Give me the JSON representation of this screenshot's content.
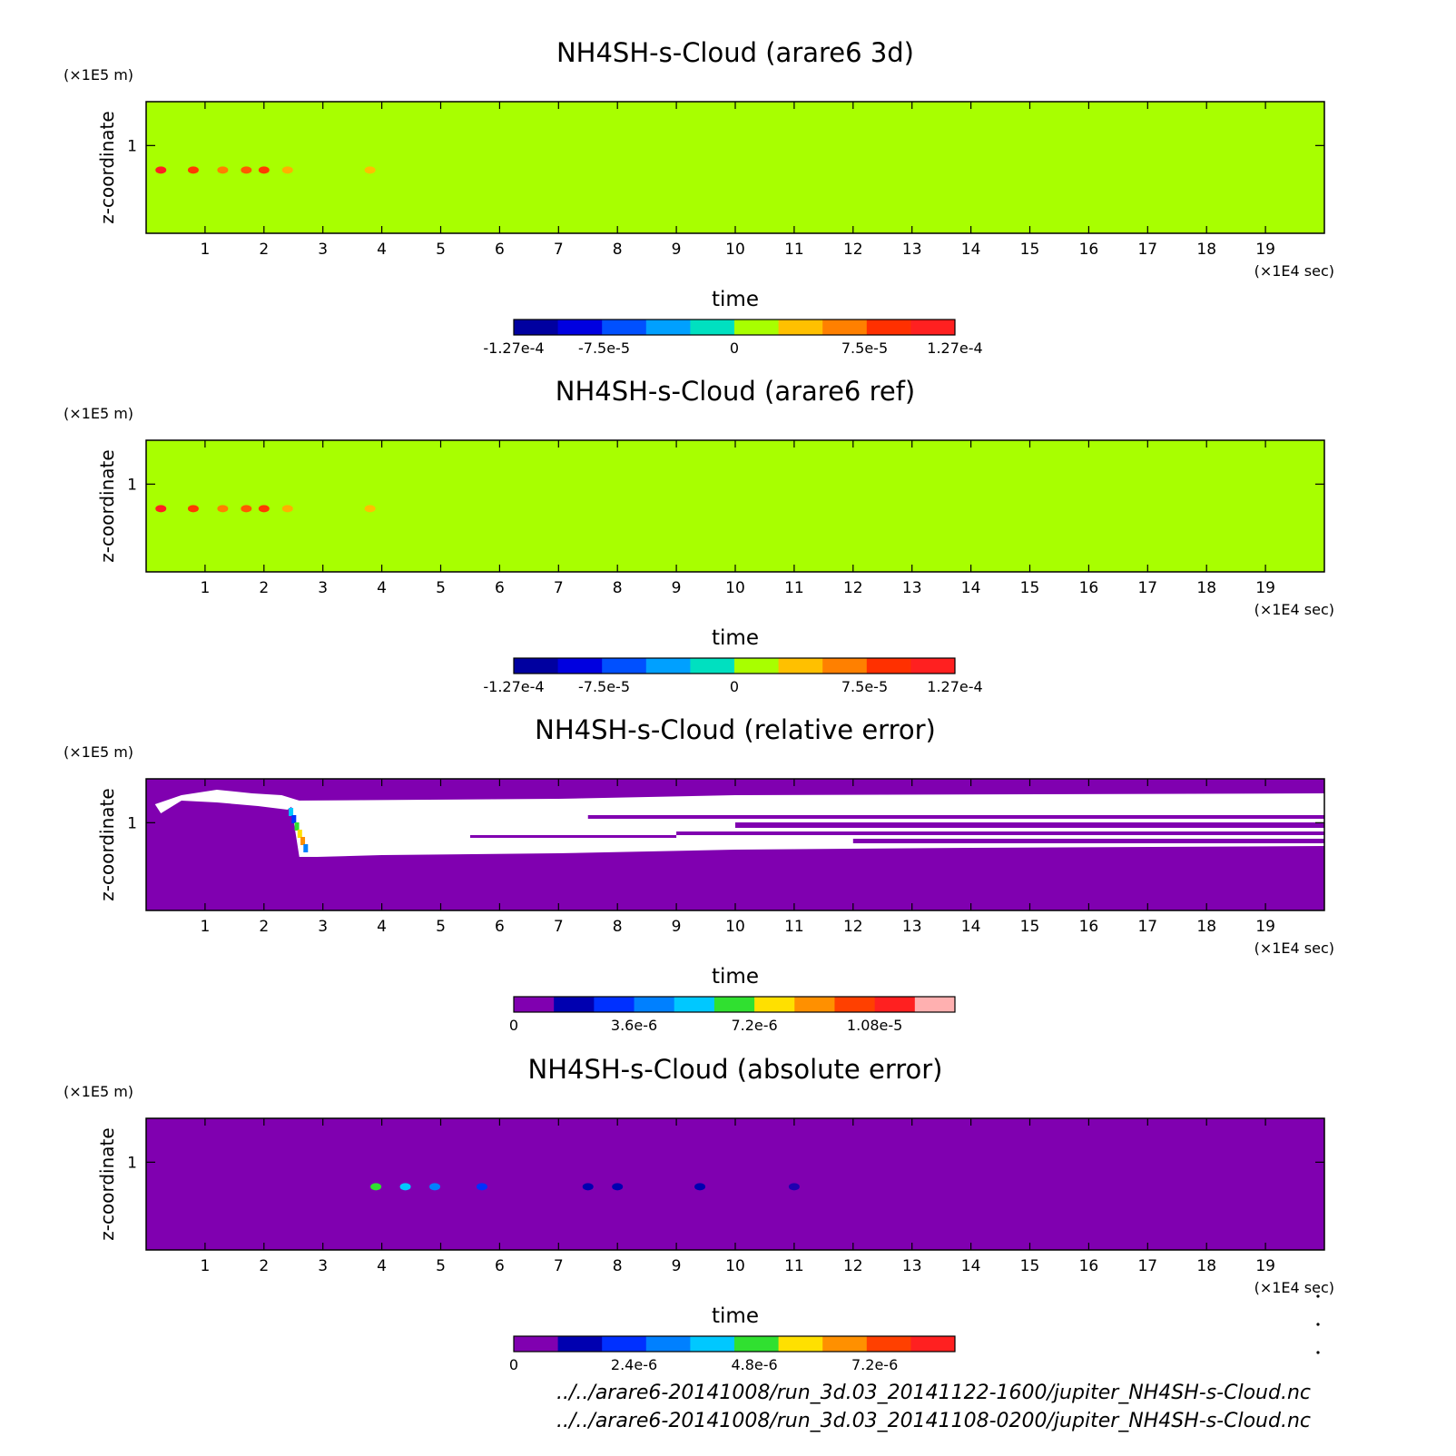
{
  "chart_data": [
    {
      "type": "heatmap",
      "title": "NH4SH-s-Cloud (arare6 3d)",
      "xlabel": "time",
      "x_unit": "(×1E4 sec)",
      "ylabel": "z-coordinate",
      "y_unit": "(×1E5 m)",
      "xlim": [
        0,
        20
      ],
      "x_ticks": [
        "1",
        "2",
        "3",
        "4",
        "5",
        "6",
        "7",
        "8",
        "9",
        "10",
        "11",
        "12",
        "13",
        "14",
        "15",
        "16",
        "17",
        "18",
        "19"
      ],
      "y_ticks": [
        "1"
      ],
      "background_color": "#a8ff00",
      "features": [
        {
          "t": 0.25,
          "z": 0.7,
          "color": "#ff2020"
        },
        {
          "t": 0.8,
          "z": 0.7,
          "color": "#ff3a00"
        },
        {
          "t": 1.3,
          "z": 0.7,
          "color": "#ff8000"
        },
        {
          "t": 1.7,
          "z": 0.7,
          "color": "#ff5a00"
        },
        {
          "t": 2.0,
          "z": 0.7,
          "color": "#ff3a00"
        },
        {
          "t": 2.4,
          "z": 0.7,
          "color": "#ffb000"
        },
        {
          "t": 3.8,
          "z": 0.7,
          "color": "#ffc000"
        }
      ],
      "colorbar": {
        "colors": [
          "#0000a0",
          "#0000e0",
          "#0050ff",
          "#00a0ff",
          "#00e0c0",
          "#a8ff00",
          "#ffc000",
          "#ff8000",
          "#ff3000",
          "#ff2020"
        ],
        "tick_labels": [
          "-1.27e-4",
          "-7.5e-5",
          "0",
          "7.5e-5",
          "1.27e-4"
        ],
        "tick_values": [
          -0.000127,
          -7.5e-05,
          0,
          7.5e-05,
          0.000127
        ],
        "range": [
          -0.000127,
          0.000127
        ]
      }
    },
    {
      "type": "heatmap",
      "title": "NH4SH-s-Cloud (arare6 ref)",
      "xlabel": "time",
      "x_unit": "(×1E4 sec)",
      "ylabel": "z-coordinate",
      "y_unit": "(×1E5 m)",
      "xlim": [
        0,
        20
      ],
      "x_ticks": [
        "1",
        "2",
        "3",
        "4",
        "5",
        "6",
        "7",
        "8",
        "9",
        "10",
        "11",
        "12",
        "13",
        "14",
        "15",
        "16",
        "17",
        "18",
        "19"
      ],
      "y_ticks": [
        "1"
      ],
      "background_color": "#a8ff00",
      "features": [
        {
          "t": 0.25,
          "z": 0.7,
          "color": "#ff2020"
        },
        {
          "t": 0.8,
          "z": 0.7,
          "color": "#ff3a00"
        },
        {
          "t": 1.3,
          "z": 0.7,
          "color": "#ff8000"
        },
        {
          "t": 1.7,
          "z": 0.7,
          "color": "#ff5a00"
        },
        {
          "t": 2.0,
          "z": 0.7,
          "color": "#ff3a00"
        },
        {
          "t": 2.4,
          "z": 0.7,
          "color": "#ffb000"
        },
        {
          "t": 3.8,
          "z": 0.7,
          "color": "#ffc000"
        }
      ],
      "colorbar": {
        "colors": [
          "#0000a0",
          "#0000e0",
          "#0050ff",
          "#00a0ff",
          "#00e0c0",
          "#a8ff00",
          "#ffc000",
          "#ff8000",
          "#ff3000",
          "#ff2020"
        ],
        "tick_labels": [
          "-1.27e-4",
          "-7.5e-5",
          "0",
          "7.5e-5",
          "1.27e-4"
        ],
        "tick_values": [
          -0.000127,
          -7.5e-05,
          0,
          7.5e-05,
          0.000127
        ],
        "range": [
          -0.000127,
          0.000127
        ]
      }
    },
    {
      "type": "heatmap",
      "title": "NH4SH-s-Cloud (relative error)",
      "xlabel": "time",
      "x_unit": "(×1E4 sec)",
      "ylabel": "z-coordinate",
      "y_unit": "(×1E5 m)",
      "xlim": [
        0,
        20
      ],
      "x_ticks": [
        "1",
        "2",
        "3",
        "4",
        "5",
        "6",
        "7",
        "8",
        "9",
        "10",
        "11",
        "12",
        "13",
        "14",
        "15",
        "16",
        "17",
        "18",
        "19"
      ],
      "y_ticks": [
        "1"
      ],
      "background_color": "#8000b0",
      "undefined_color": "#ffffff",
      "colorbar": {
        "colors": [
          "#8000b0",
          "#0000b0",
          "#0030ff",
          "#0080ff",
          "#00c8ff",
          "#30e030",
          "#ffe000",
          "#ff9000",
          "#ff4000",
          "#ff2020",
          "#ffb0b0"
        ],
        "tick_labels": [
          "0",
          "3.6e-6",
          "7.2e-6",
          "1.08e-5"
        ],
        "tick_values": [
          0,
          3.6e-06,
          7.2e-06,
          1.08e-05
        ],
        "range": [
          0,
          1.32e-05
        ]
      }
    },
    {
      "type": "heatmap",
      "title": "NH4SH-s-Cloud (absolute error)",
      "xlabel": "time",
      "x_unit": "(×1E4 sec)",
      "ylabel": "z-coordinate",
      "y_unit": "(×1E5 m)",
      "xlim": [
        0,
        20
      ],
      "x_ticks": [
        "1",
        "2",
        "3",
        "4",
        "5",
        "6",
        "7",
        "8",
        "9",
        "10",
        "11",
        "12",
        "13",
        "14",
        "15",
        "16",
        "17",
        "18",
        "19"
      ],
      "y_ticks": [
        "1"
      ],
      "background_color": "#8000b0",
      "features": [
        {
          "t": 3.9,
          "z": 0.7,
          "color": "#30e030"
        },
        {
          "t": 4.4,
          "z": 0.7,
          "color": "#00c8ff"
        },
        {
          "t": 4.9,
          "z": 0.7,
          "color": "#0080ff"
        },
        {
          "t": 5.7,
          "z": 0.7,
          "color": "#0030ff"
        },
        {
          "t": 7.5,
          "z": 0.7,
          "color": "#0000b0"
        },
        {
          "t": 8.0,
          "z": 0.7,
          "color": "#0000b0"
        },
        {
          "t": 9.4,
          "z": 0.7,
          "color": "#0000b0"
        },
        {
          "t": 11.0,
          "z": 0.7,
          "color": "#2000b0"
        }
      ],
      "colorbar": {
        "colors": [
          "#8000b0",
          "#0000b0",
          "#0030ff",
          "#0080ff",
          "#00c8ff",
          "#30e030",
          "#ffe000",
          "#ff9000",
          "#ff4000",
          "#ff2020"
        ],
        "tick_labels": [
          "0",
          "2.4e-6",
          "4.8e-6",
          "7.2e-6"
        ],
        "tick_values": [
          0,
          2.4e-06,
          4.8e-06,
          7.2e-06
        ],
        "range": [
          0,
          8.8e-06
        ]
      }
    }
  ],
  "footer": {
    "line1": "../../arare6-20141008/run_3d.03_20141122-1600/jupiter_NH4SH-s-Cloud.nc",
    "line2": "../../arare6-20141008/run_3d.03_20141108-0200/jupiter_NH4SH-s-Cloud.nc"
  }
}
